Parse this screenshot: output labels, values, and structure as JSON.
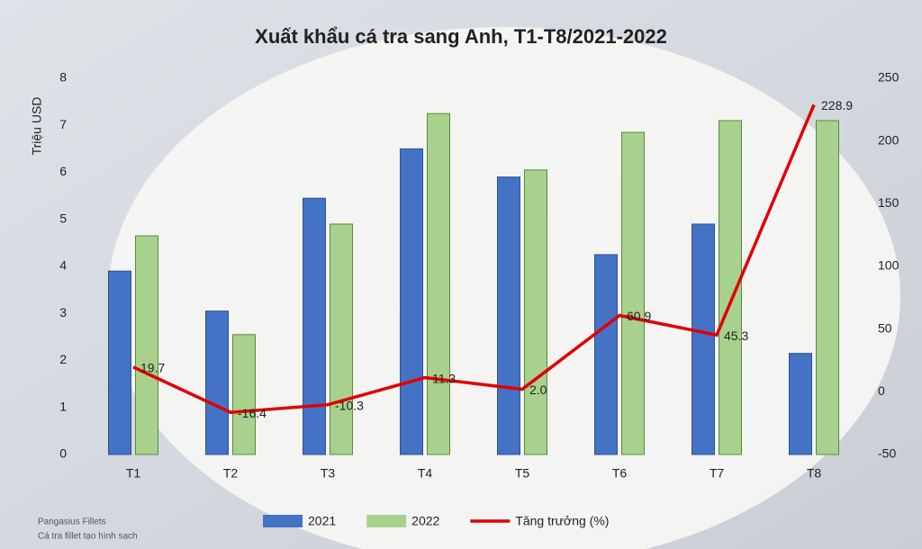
{
  "chart_data": {
    "type": "bar",
    "title": "Xuất khẩu cá tra sang Anh, T1-T8/2021-2022",
    "y_label": "Triệu USD",
    "categories": [
      "T1",
      "T2",
      "T3",
      "T4",
      "T5",
      "T6",
      "T7",
      "T8"
    ],
    "series": [
      {
        "name": "2021",
        "color": "#4472c4",
        "values": [
          3.9,
          3.05,
          5.45,
          6.5,
          5.9,
          4.25,
          4.9,
          2.15
        ]
      },
      {
        "name": "2022",
        "color": "#a9d18e",
        "values": [
          4.65,
          2.55,
          4.9,
          7.25,
          6.05,
          6.85,
          7.1,
          7.1
        ]
      },
      {
        "name": "Tăng trưởng (%)",
        "type": "line",
        "axis": "y2",
        "color": "#e00000",
        "values": [
          19.7,
          -16.4,
          -10.3,
          11.3,
          2.0,
          60.9,
          45.3,
          228.9
        ],
        "value_labels": [
          "19.7",
          "-16.4",
          "-10.3",
          "11.3",
          "2.0",
          "60.9",
          "45.3",
          "228.9"
        ]
      }
    ],
    "ylim": [
      0,
      8
    ],
    "yticks": [
      0,
      1,
      2,
      3,
      4,
      5,
      6,
      7,
      8
    ],
    "y2lim": [
      -50,
      250
    ],
    "y2ticks": [
      -50,
      0,
      50,
      100,
      150,
      200,
      250
    ],
    "legend": "bottom",
    "watermark": [
      "Pangasius Fillets",
      "Cá tra fillet tạo hình sạch"
    ]
  }
}
